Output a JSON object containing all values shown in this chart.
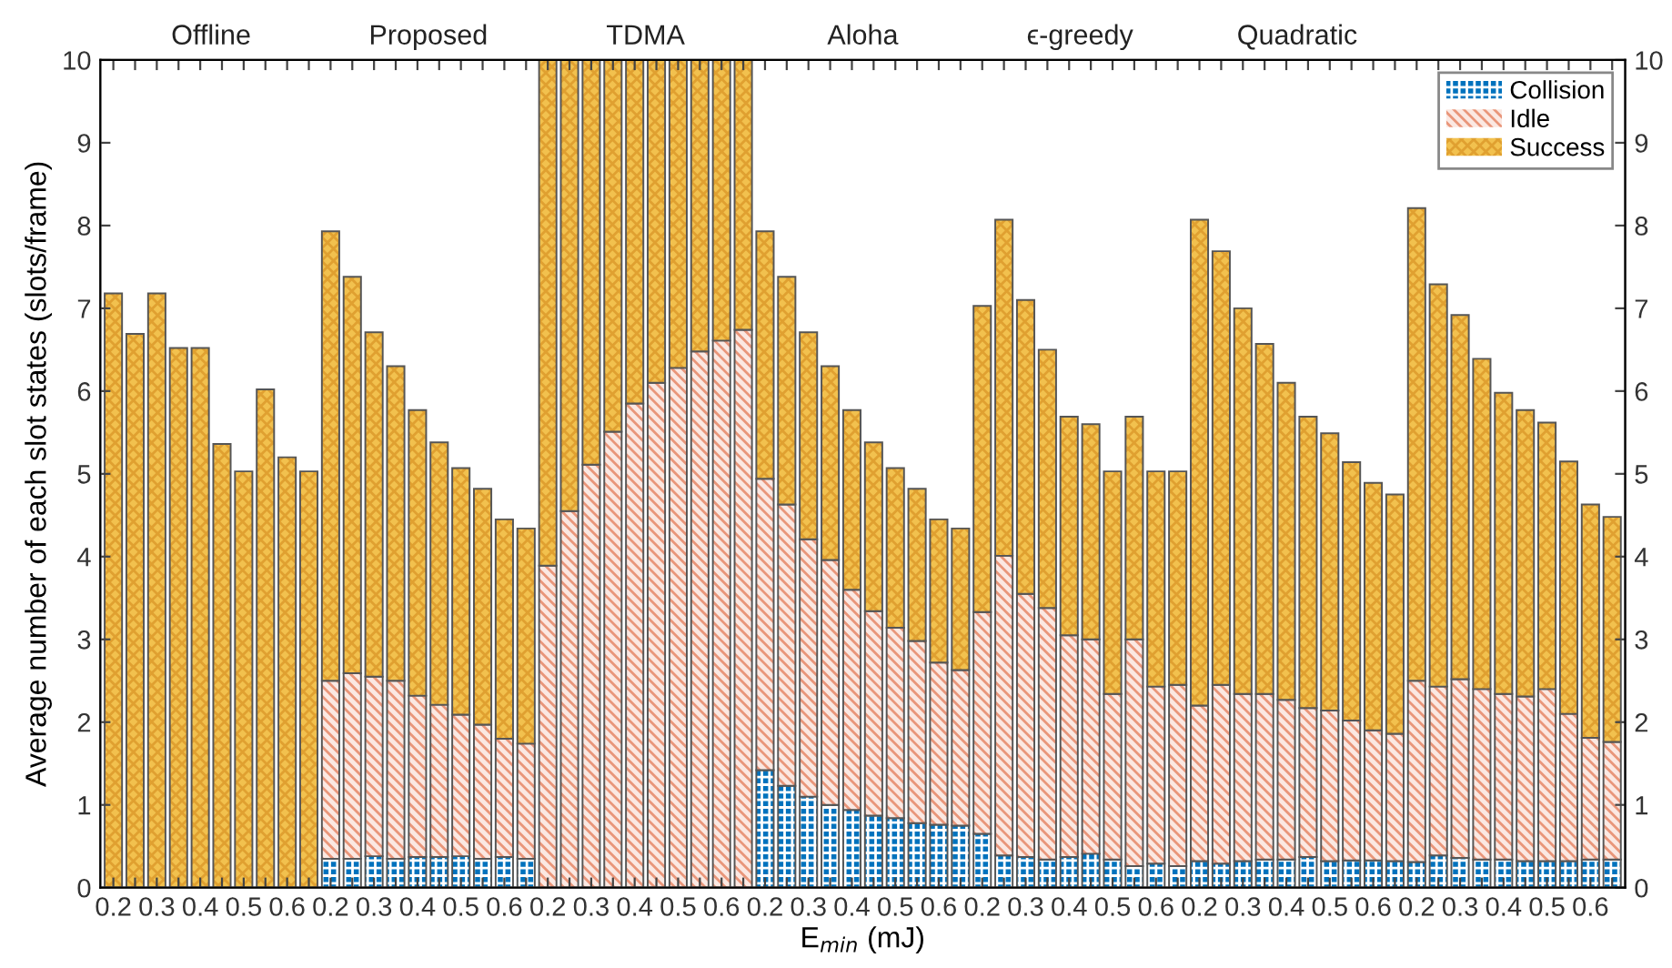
{
  "chart_data": {
    "type": "bar",
    "stacked": true,
    "xlabel": "E$_{min}$ (mJ)",
    "ylabel": "Average number of each slot states (slots/frame)",
    "categories": [
      "0.2",
      null,
      "0.3",
      null,
      "0.4",
      null,
      "0.5",
      null,
      "0.6",
      null,
      "0.2",
      null,
      "0.3",
      null,
      "0.4",
      null,
      "0.5",
      null,
      "0.6",
      null,
      "0.2",
      null,
      "0.3",
      null,
      "0.4",
      null,
      "0.5",
      null,
      "0.6",
      null,
      "0.2",
      null,
      "0.3",
      null,
      "0.4",
      null,
      "0.5",
      null,
      "0.6",
      null,
      "0.2",
      null,
      "0.3",
      null,
      "0.4",
      null,
      "0.5",
      null,
      "0.6",
      null,
      "0.2",
      null,
      "0.3",
      null,
      "0.4",
      null,
      "0.5",
      null,
      "0.6",
      null,
      "0.2",
      null,
      "0.3",
      null,
      "0.4",
      null,
      "0.5",
      null,
      "0.6",
      null
    ],
    "annotations": [
      "Offline",
      "Proposed",
      "TDMA",
      "Aloha",
      "ϵ-greedy",
      "Quadratic"
    ],
    "series": [
      {
        "name": "Collision",
        "color": "#0072bd",
        "values": [
          0,
          0,
          0,
          0,
          0,
          0,
          0,
          0,
          0,
          0,
          0.35,
          0.35,
          0.38,
          0.35,
          0.37,
          0.37,
          0.38,
          0.35,
          0.37,
          0.35,
          0,
          0,
          0,
          0,
          0,
          0,
          0,
          0,
          0,
          0,
          1.42,
          1.23,
          1.1,
          1.0,
          0.94,
          0.87,
          0.84,
          0.78,
          0.76,
          0.75,
          0.65,
          0.39,
          0.37,
          0.34,
          0.37,
          0.41,
          0.34,
          0.26,
          0.29,
          0.26,
          0.32,
          0.29,
          0.32,
          0.34,
          0.34,
          0.37,
          0.32,
          0.33,
          0.33,
          0.32,
          0.31,
          0.39,
          0.36,
          0.34,
          0.34,
          0.32,
          0.32,
          0.32,
          0.34,
          0.34
        ]
      },
      {
        "name": "Idle",
        "color": "#fbe8e2",
        "values": [
          0,
          0,
          0,
          0,
          0,
          0,
          0,
          0,
          0,
          0,
          2.15,
          2.24,
          2.17,
          2.15,
          1.95,
          1.84,
          1.71,
          1.62,
          1.43,
          1.39,
          3.89,
          4.55,
          5.11,
          5.51,
          5.85,
          6.1,
          6.28,
          6.48,
          6.61,
          6.74,
          3.52,
          3.4,
          3.11,
          2.96,
          2.66,
          2.47,
          2.3,
          2.2,
          1.96,
          1.88,
          2.68,
          3.62,
          3.18,
          3.04,
          2.68,
          2.59,
          2.0,
          2.74,
          2.14,
          2.19,
          1.88,
          2.16,
          2.02,
          2.0,
          1.93,
          1.8,
          1.82,
          1.69,
          1.57,
          1.54,
          2.19,
          2.04,
          2.16,
          2.06,
          2.0,
          1.99,
          2.08,
          1.78,
          1.47,
          1.42
        ]
      },
      {
        "name": "Success",
        "color": "#f2c14e",
        "values": [
          7.18,
          6.69,
          7.18,
          6.52,
          6.52,
          5.36,
          5.03,
          6.02,
          5.2,
          5.03,
          5.43,
          4.79,
          4.16,
          3.8,
          3.45,
          3.17,
          2.98,
          2.85,
          2.65,
          2.6,
          6.11,
          5.45,
          4.89,
          4.49,
          4.15,
          3.9,
          3.72,
          3.52,
          3.39,
          3.26,
          2.99,
          2.75,
          2.5,
          2.34,
          2.17,
          2.04,
          1.93,
          1.84,
          1.73,
          1.71,
          3.7,
          4.06,
          3.55,
          3.12,
          2.64,
          2.6,
          2.69,
          2.69,
          2.6,
          2.58,
          5.87,
          5.24,
          4.66,
          4.23,
          3.83,
          3.52,
          3.35,
          3.12,
          2.99,
          2.89,
          5.71,
          4.86,
          4.4,
          3.99,
          3.64,
          3.46,
          3.22,
          3.05,
          2.82,
          2.72
        ]
      }
    ],
    "ylim": [
      0,
      10
    ],
    "yticks": [
      0,
      1,
      2,
      3,
      4,
      5,
      6,
      7,
      8,
      9,
      10
    ],
    "y2lim": [
      0,
      10
    ],
    "y2ticks": [
      0,
      1,
      2,
      3,
      4,
      5,
      6,
      7,
      8,
      9,
      10
    ],
    "legend": "top right",
    "grid": false
  }
}
